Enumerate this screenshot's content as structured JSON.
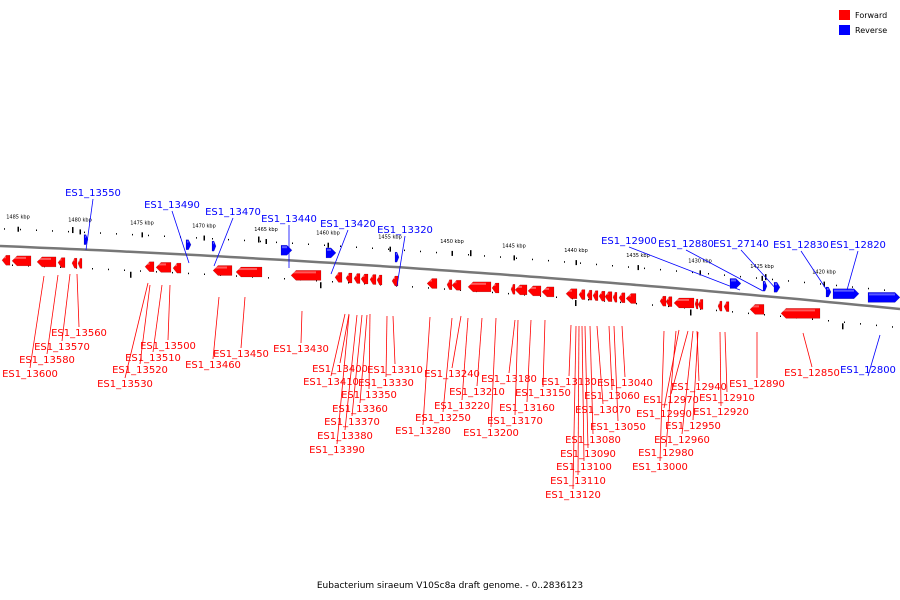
{
  "caption": "Eubacterium siraeum V10Sc8a draft genome. - 0..2836123",
  "legend": [
    {
      "label": "Forward",
      "color": "#ff0000"
    },
    {
      "label": "Reverse",
      "color": "#0000ff"
    }
  ],
  "colors": {
    "forward": "#ff0000",
    "reverse": "#0000ff",
    "backbone": "#777777",
    "ticks": "#000000"
  },
  "scale_ticks": [
    "1485 kbp",
    "1480 kbp",
    "1475 kbp",
    "1470 kbp",
    "1465 kbp",
    "1460 kbp",
    "1455 kbp",
    "1450 kbp",
    "1445 kbp",
    "1440 kbp",
    "1435 kbp",
    "1430 kbp",
    "1425 kbp",
    "1420 kbp"
  ],
  "reverse_labels": [
    "ES1_13550",
    "ES1_13490",
    "ES1_13470",
    "ES1_13440",
    "ES1_13420",
    "ES1_13320",
    "ES1_12900",
    "ES1_12880",
    "ES1_27140",
    "ES1_12830",
    "ES1_12820",
    "ES1_12800"
  ],
  "forward_labels": [
    "ES1_13560",
    "ES1_13570",
    "ES1_13580",
    "ES1_13600",
    "ES1_13500",
    "ES1_13510",
    "ES1_13520",
    "ES1_13530",
    "ES1_13450",
    "ES1_13460",
    "ES1_13430",
    "ES1_13400",
    "ES1_13410",
    "ES1_13350",
    "ES1_13360",
    "ES1_13370",
    "ES1_13380",
    "ES1_13390",
    "ES1_13310",
    "ES1_13330",
    "ES1_13240",
    "ES1_13210",
    "ES1_13220",
    "ES1_13250",
    "ES1_13280",
    "ES1_13200",
    "ES1_13180",
    "ES1_13150",
    "ES1_13160",
    "ES1_13170",
    "ES1_13130",
    "ES1_13060",
    "ES1_13040",
    "ES1_13070",
    "ES1_13050",
    "ES1_13080",
    "ES1_13090",
    "ES1_13100",
    "ES1_13110",
    "ES1_13120",
    "ES1_12940",
    "ES1_12970",
    "ES1_12990",
    "ES1_12960",
    "ES1_12980",
    "ES1_13000",
    "ES1_12910",
    "ES1_12920",
    "ES1_12950",
    "ES1_12890",
    "ES1_12850"
  ]
}
